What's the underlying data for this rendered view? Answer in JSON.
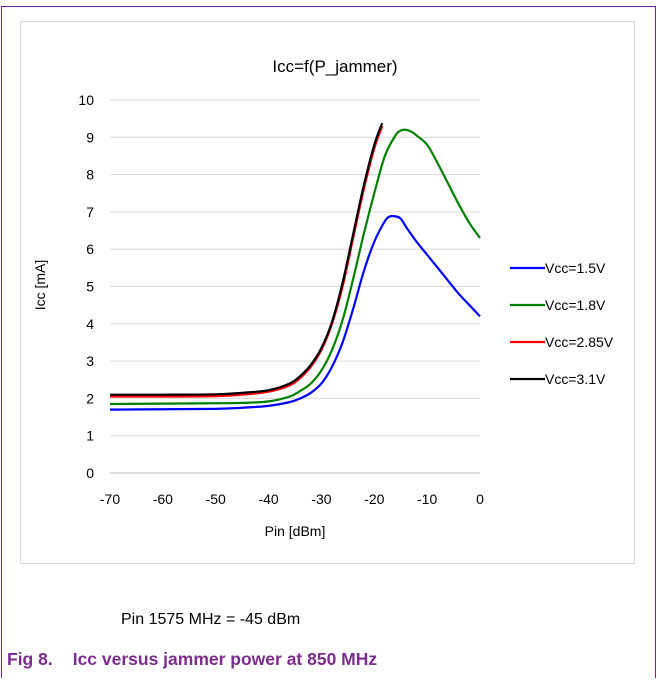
{
  "chart_data": {
    "type": "line",
    "title": "Icc=f(P_jammer)",
    "xlabel": "Pin [dBm]",
    "ylabel": "Icc [mA]",
    "xlim": [
      -70,
      0
    ],
    "ylim": [
      0,
      10
    ],
    "xticks": [
      "-70",
      "-60",
      "-50",
      "-40",
      "-30",
      "-20",
      "-10",
      "0"
    ],
    "yticks": [
      "0",
      "1",
      "2",
      "3",
      "4",
      "5",
      "6",
      "7",
      "8",
      "9",
      "10"
    ],
    "grid": "horizontal",
    "legend_position": "right",
    "series": [
      {
        "name": "Vcc=1.5V",
        "color": "#0000ff",
        "x": [
          -70,
          -60,
          -50,
          -45,
          -40,
          -36,
          -34,
          -32,
          -30,
          -28,
          -26,
          -24,
          -22,
          -20,
          -18,
          -17,
          -16,
          -15,
          -14,
          -12,
          -10,
          -8,
          -6,
          -4,
          -2,
          0
        ],
        "y": [
          1.7,
          1.71,
          1.72,
          1.75,
          1.8,
          1.9,
          2.0,
          2.15,
          2.4,
          2.85,
          3.5,
          4.4,
          5.4,
          6.2,
          6.75,
          6.88,
          6.88,
          6.82,
          6.6,
          6.2,
          5.85,
          5.5,
          5.15,
          4.8,
          4.5,
          4.2
        ]
      },
      {
        "name": "Vcc=1.8V",
        "color": "#008000",
        "x": [
          -70,
          -60,
          -50,
          -45,
          -40,
          -36,
          -34,
          -32,
          -30,
          -28,
          -26,
          -24,
          -22,
          -20,
          -18,
          -16,
          -15,
          -14,
          -13,
          -12,
          -10,
          -8,
          -6,
          -4,
          -2,
          0
        ],
        "y": [
          1.85,
          1.86,
          1.87,
          1.88,
          1.92,
          2.05,
          2.2,
          2.4,
          2.75,
          3.3,
          4.1,
          5.2,
          6.4,
          7.5,
          8.5,
          9.05,
          9.18,
          9.2,
          9.15,
          9.05,
          8.8,
          8.3,
          7.75,
          7.2,
          6.7,
          6.3
        ]
      },
      {
        "name": "Vcc=2.85V",
        "color": "#ff0000",
        "x": [
          -70,
          -60,
          -50,
          -45,
          -40,
          -36,
          -34,
          -32,
          -30,
          -28,
          -26,
          -24,
          -22,
          -20,
          -18.5
        ],
        "y": [
          2.05,
          2.05,
          2.06,
          2.1,
          2.18,
          2.35,
          2.55,
          2.85,
          3.3,
          4.0,
          5.0,
          6.3,
          7.6,
          8.7,
          9.3
        ]
      },
      {
        "name": "Vcc=3.1V",
        "color": "#000000",
        "x": [
          -70,
          -60,
          -50,
          -45,
          -40,
          -36,
          -34,
          -32,
          -30,
          -28,
          -26,
          -24,
          -22,
          -20,
          -18.5
        ],
        "y": [
          2.1,
          2.1,
          2.11,
          2.15,
          2.22,
          2.4,
          2.6,
          2.9,
          3.35,
          4.05,
          5.1,
          6.4,
          7.7,
          8.8,
          9.38
        ]
      }
    ]
  },
  "note": "Pin 1575 MHz = -45 dBm",
  "caption": {
    "number": "Fig 8.",
    "text": "Icc versus jammer power at 850 MHz"
  }
}
